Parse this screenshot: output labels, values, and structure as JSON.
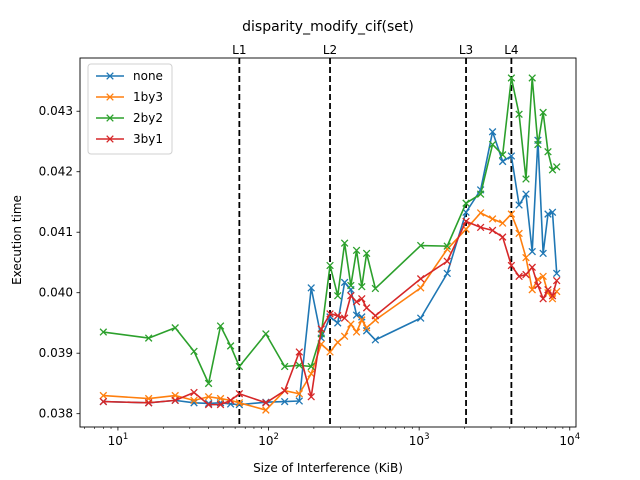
{
  "chart_data": {
    "type": "line",
    "title": "disparity_modify_cif(set)",
    "xlabel": "Size of Interference (KiB)",
    "ylabel": "Execution time",
    "xscale": "log",
    "xlim": [
      5.6,
      11000
    ],
    "ylim": [
      0.03778,
      0.04388
    ],
    "x_ticks": [
      {
        "value": 10,
        "base": "10",
        "exp": "1"
      },
      {
        "value": 100,
        "base": "10",
        "exp": "2"
      },
      {
        "value": 1000,
        "base": "10",
        "exp": "3"
      },
      {
        "value": 10000,
        "base": "10",
        "exp": "4"
      }
    ],
    "y_ticks": [
      "0.038",
      "0.039",
      "0.040",
      "0.041",
      "0.042",
      "0.043"
    ],
    "grid": false,
    "legend_position": "top-left",
    "vlines": [
      {
        "label": "L1",
        "x": 64
      },
      {
        "label": "L2",
        "x": 256
      },
      {
        "label": "L3",
        "x": 2048
      },
      {
        "label": "L4",
        "x": 4096
      }
    ],
    "series": [
      {
        "name": "none",
        "color": "#1f77b4",
        "points": [
          [
            8,
            0.0382
          ],
          [
            16,
            0.03818
          ],
          [
            24,
            0.03822
          ],
          [
            32,
            0.03818
          ],
          [
            40,
            0.03817
          ],
          [
            48,
            0.03818
          ],
          [
            56,
            0.03816
          ],
          [
            64,
            0.03815
          ],
          [
            96,
            0.03819
          ],
          [
            128,
            0.0382
          ],
          [
            160,
            0.03821
          ],
          [
            192,
            0.04008
          ],
          [
            224,
            0.03925
          ],
          [
            256,
            0.0396
          ],
          [
            288,
            0.0395
          ],
          [
            320,
            0.04017
          ],
          [
            352,
            0.04005
          ],
          [
            384,
            0.03963
          ],
          [
            416,
            0.0396
          ],
          [
            448,
            0.03937
          ],
          [
            512,
            0.03922
          ],
          [
            1024,
            0.03958
          ],
          [
            1536,
            0.04032
          ],
          [
            2048,
            0.04133
          ],
          [
            2560,
            0.0417
          ],
          [
            3072,
            0.04266
          ],
          [
            3584,
            0.04217
          ],
          [
            4096,
            0.04226
          ],
          [
            4608,
            0.04145
          ],
          [
            5120,
            0.04163
          ],
          [
            5632,
            0.04068
          ],
          [
            6144,
            0.04252
          ],
          [
            6656,
            0.04065
          ],
          [
            7168,
            0.0413
          ],
          [
            7680,
            0.04133
          ],
          [
            8192,
            0.04032
          ]
        ]
      },
      {
        "name": "1by3",
        "color": "#ff7f0e",
        "points": [
          [
            8,
            0.0383
          ],
          [
            16,
            0.03825
          ],
          [
            24,
            0.0383
          ],
          [
            32,
            0.03822
          ],
          [
            40,
            0.03828
          ],
          [
            48,
            0.03825
          ],
          [
            56,
            0.03822
          ],
          [
            64,
            0.03818
          ],
          [
            96,
            0.03806
          ],
          [
            128,
            0.03838
          ],
          [
            160,
            0.03833
          ],
          [
            192,
            0.03866
          ],
          [
            224,
            0.03915
          ],
          [
            256,
            0.03902
          ],
          [
            288,
            0.03918
          ],
          [
            320,
            0.03928
          ],
          [
            352,
            0.03948
          ],
          [
            384,
            0.03935
          ],
          [
            416,
            0.03955
          ],
          [
            448,
            0.03942
          ],
          [
            512,
            0.03955
          ],
          [
            1024,
            0.04008
          ],
          [
            1536,
            0.04072
          ],
          [
            2048,
            0.04105
          ],
          [
            2560,
            0.04132
          ],
          [
            3072,
            0.04122
          ],
          [
            3584,
            0.04115
          ],
          [
            4096,
            0.0413
          ],
          [
            4608,
            0.04098
          ],
          [
            5120,
            0.04058
          ],
          [
            5632,
            0.04005
          ],
          [
            6144,
            0.04022
          ],
          [
            6656,
            0.04027
          ],
          [
            7168,
            0.04
          ],
          [
            7680,
            0.0399
          ],
          [
            8192,
            0.04002
          ]
        ]
      },
      {
        "name": "2by2",
        "color": "#2ca02c",
        "points": [
          [
            8,
            0.03935
          ],
          [
            16,
            0.03925
          ],
          [
            24,
            0.03942
          ],
          [
            32,
            0.03903
          ],
          [
            40,
            0.0385
          ],
          [
            48,
            0.03945
          ],
          [
            56,
            0.03912
          ],
          [
            64,
            0.03878
          ],
          [
            96,
            0.03932
          ],
          [
            128,
            0.03878
          ],
          [
            160,
            0.0388
          ],
          [
            192,
            0.03878
          ],
          [
            224,
            0.03932
          ],
          [
            256,
            0.04045
          ],
          [
            288,
            0.03995
          ],
          [
            320,
            0.04082
          ],
          [
            352,
            0.04012
          ],
          [
            384,
            0.0407
          ],
          [
            416,
            0.0401
          ],
          [
            448,
            0.04065
          ],
          [
            512,
            0.04007
          ],
          [
            1024,
            0.04078
          ],
          [
            1536,
            0.04077
          ],
          [
            2048,
            0.04148
          ],
          [
            2560,
            0.04163
          ],
          [
            3072,
            0.04245
          ],
          [
            3584,
            0.04228
          ],
          [
            4096,
            0.04355
          ],
          [
            4608,
            0.04295
          ],
          [
            5120,
            0.04188
          ],
          [
            5632,
            0.04355
          ],
          [
            6144,
            0.04245
          ],
          [
            6656,
            0.04298
          ],
          [
            7168,
            0.04233
          ],
          [
            7680,
            0.04203
          ],
          [
            8192,
            0.04208
          ]
        ]
      },
      {
        "name": "3by1",
        "color": "#d62728",
        "points": [
          [
            8,
            0.0382
          ],
          [
            16,
            0.03818
          ],
          [
            24,
            0.03822
          ],
          [
            32,
            0.03835
          ],
          [
            40,
            0.03815
          ],
          [
            48,
            0.03815
          ],
          [
            56,
            0.03822
          ],
          [
            64,
            0.03833
          ],
          [
            96,
            0.03818
          ],
          [
            128,
            0.03838
          ],
          [
            160,
            0.03902
          ],
          [
            192,
            0.03828
          ],
          [
            224,
            0.0394
          ],
          [
            256,
            0.03965
          ],
          [
            288,
            0.03962
          ],
          [
            320,
            0.03958
          ],
          [
            352,
            0.03995
          ],
          [
            384,
            0.03985
          ],
          [
            416,
            0.0399
          ],
          [
            448,
            0.03975
          ],
          [
            512,
            0.03962
          ],
          [
            1024,
            0.04023
          ],
          [
            1536,
            0.04052
          ],
          [
            2048,
            0.04118
          ],
          [
            2560,
            0.04108
          ],
          [
            3072,
            0.04103
          ],
          [
            3584,
            0.04092
          ],
          [
            4096,
            0.04045
          ],
          [
            4608,
            0.04027
          ],
          [
            5120,
            0.0403
          ],
          [
            5632,
            0.04042
          ],
          [
            6144,
            0.04012
          ],
          [
            6656,
            0.0399
          ],
          [
            7168,
            0.04005
          ],
          [
            7680,
            0.03995
          ],
          [
            8192,
            0.0402
          ]
        ]
      }
    ]
  }
}
